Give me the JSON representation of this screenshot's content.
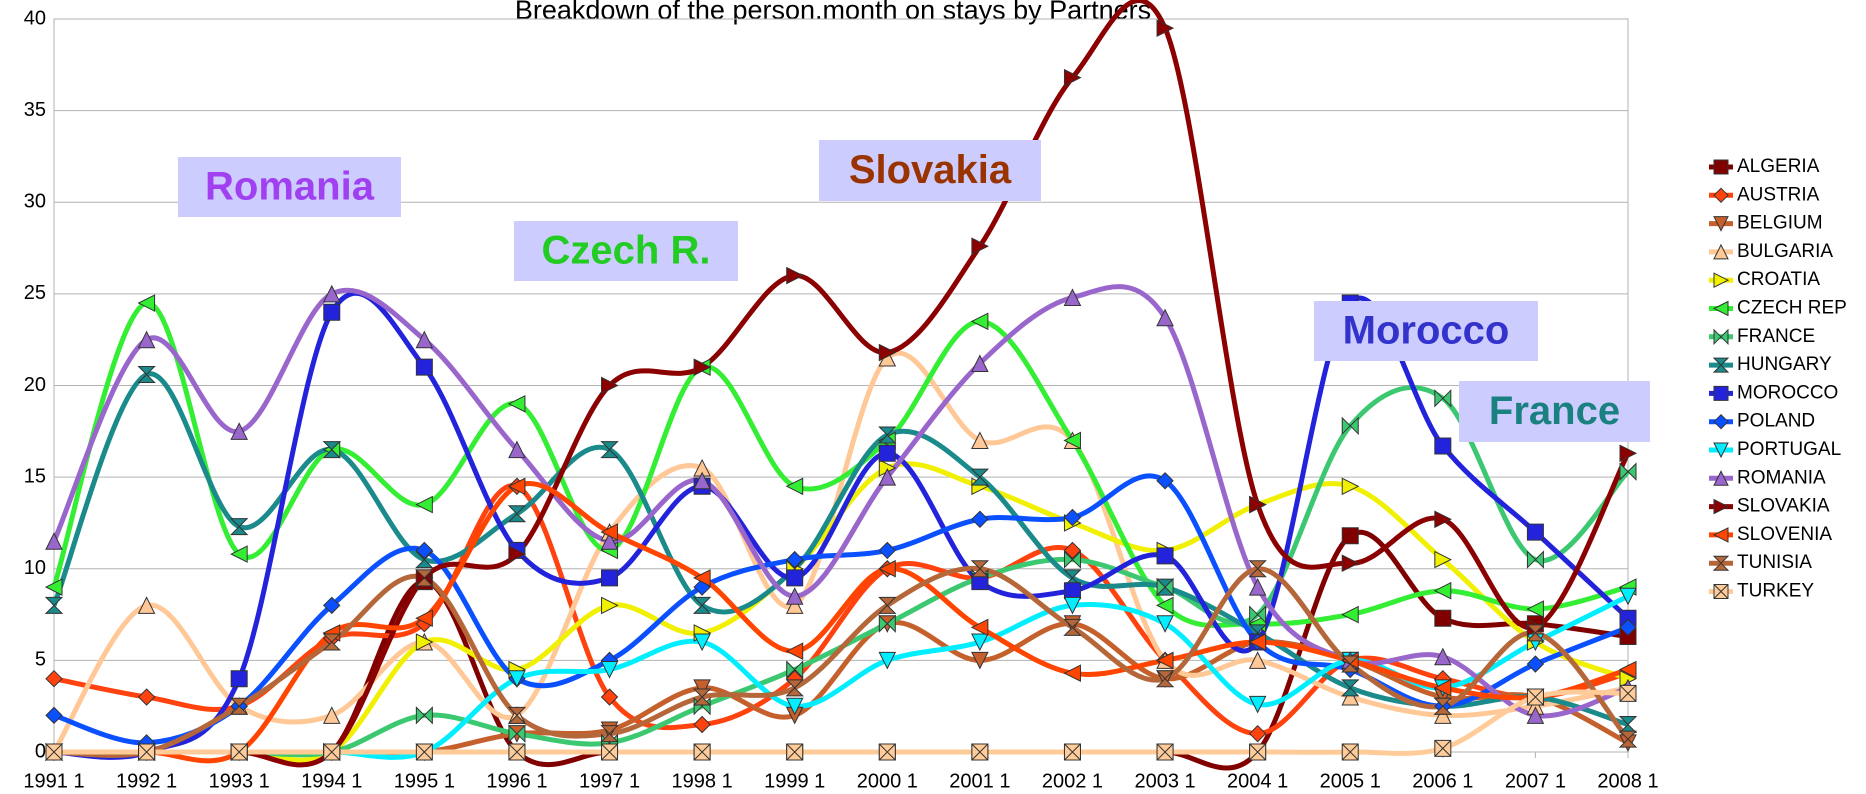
{
  "chart_data": {
    "type": "line",
    "title": "Breakdown of the person.month on stays by Partners",
    "categories": [
      "1991 1",
      "1992 1",
      "1993 1",
      "1994 1",
      "1995 1",
      "1996 1",
      "1997 1",
      "1998 1",
      "1999 1",
      "2000 1",
      "2001 1",
      "2002 1",
      "2003 1",
      "2004 1",
      "2005 1",
      "2006 1",
      "2007 1",
      "2008 1"
    ],
    "ylim": [
      0,
      40
    ],
    "yticks": [
      0,
      5,
      10,
      15,
      20,
      25,
      30,
      35,
      40
    ],
    "grid": true,
    "legend": "right",
    "annotations": [
      {
        "text": "Romania",
        "color": "#a040f0"
      },
      {
        "text": "Czech R.",
        "color": "#22cc22"
      },
      {
        "text": "Slovakia",
        "color": "#993300"
      },
      {
        "text": "Morocco",
        "color": "#3333cc"
      },
      {
        "text": "France",
        "color": "#1a8080"
      }
    ],
    "series": [
      {
        "name": "ALGERIA",
        "color": "#800000",
        "values": [
          0,
          0,
          0,
          0,
          9.3,
          0,
          0,
          0,
          0,
          0,
          0,
          0,
          0,
          0,
          11.8,
          7.3,
          7,
          6.3
        ]
      },
      {
        "name": "AUSTRIA",
        "color": "#ff420e",
        "values": [
          4,
          3,
          2.5,
          6.2,
          7,
          14.5,
          3,
          1.5,
          4,
          10,
          9.5,
          11,
          5,
          1,
          5,
          4,
          3,
          4.3
        ]
      },
      {
        "name": "BELGIUM",
        "color": "#c5602c",
        "values": [
          0,
          0,
          0,
          0,
          0,
          1,
          1.2,
          3.5,
          2,
          7,
          5,
          7,
          4,
          6,
          5,
          3,
          3,
          0.5
        ]
      },
      {
        "name": "BULGARIA",
        "color": "#ffc896",
        "values": [
          0,
          8,
          2.5,
          2,
          6,
          2,
          12,
          15.5,
          8,
          21.5,
          17,
          17,
          5,
          5,
          3,
          2,
          2.5,
          3.5
        ]
      },
      {
        "name": "CROATIA",
        "color": "#f0f000",
        "values": [
          0,
          0,
          0,
          0,
          6,
          4.5,
          8,
          6.5,
          10,
          15.5,
          14.5,
          12.5,
          11,
          13.5,
          14.5,
          10.5,
          6,
          4
        ]
      },
      {
        "name": "CZECH REP",
        "color": "#33ee33",
        "values": [
          9,
          24.5,
          10.8,
          16.5,
          13.5,
          19,
          11,
          21,
          14.5,
          17,
          23.5,
          17,
          8,
          7,
          7.5,
          8.8,
          7.8,
          9
        ]
      },
      {
        "name": "FRANCE",
        "color": "#3cc870",
        "values": [
          0,
          0,
          0,
          0,
          2,
          1,
          0.5,
          2.5,
          4.5,
          7,
          9.5,
          10.5,
          9,
          7.5,
          17.8,
          19.3,
          10.5,
          15.3
        ]
      },
      {
        "name": "HUNGARY",
        "color": "#1a8a8a",
        "values": [
          8,
          20.6,
          12.3,
          16.5,
          10.5,
          13,
          16.5,
          8,
          10,
          17.3,
          15,
          9.5,
          9,
          6.5,
          3.5,
          2.5,
          3,
          1.5
        ]
      },
      {
        "name": "MOROCCO",
        "color": "#2323dc",
        "values": [
          0,
          0,
          4,
          24,
          21,
          11,
          9.5,
          14.5,
          9.5,
          16.3,
          9.3,
          8.8,
          10.7,
          6,
          24.5,
          16.7,
          12,
          7.3
        ]
      },
      {
        "name": "POLAND",
        "color": "#0a50ff",
        "values": [
          2,
          0.5,
          2.5,
          8,
          11,
          4,
          5,
          9,
          10.5,
          11,
          12.7,
          12.8,
          14.8,
          6,
          4.5,
          2.5,
          4.8,
          6.8
        ]
      },
      {
        "name": "PORTUGAL",
        "color": "#00eeff",
        "values": [
          0,
          0,
          0,
          0,
          0,
          4,
          4.5,
          6,
          2.5,
          5,
          6,
          8,
          7,
          2.6,
          5,
          3.5,
          6,
          8.5
        ]
      },
      {
        "name": "ROMANIA",
        "color": "#9966cc",
        "values": [
          11.5,
          22.5,
          17.5,
          25,
          22.5,
          16.5,
          11.5,
          14.8,
          8.5,
          15,
          21.2,
          24.8,
          23.7,
          9,
          5,
          5.2,
          2,
          3.5
        ]
      },
      {
        "name": "SLOVAKIA",
        "color": "#8b0000",
        "values": [
          0,
          0,
          0,
          0,
          9.5,
          10.8,
          20,
          21,
          26,
          21.8,
          27.6,
          36.8,
          39.5,
          13.5,
          10.3,
          12.7,
          6.8,
          16.3
        ]
      },
      {
        "name": "SLOVENIA",
        "color": "#ff4500",
        "values": [
          0,
          0,
          0,
          6.5,
          7.3,
          14.5,
          12,
          9.5,
          5.5,
          10,
          6.8,
          4.3,
          5,
          6,
          5,
          3.5,
          3,
          4.5
        ]
      },
      {
        "name": "TUNISIA",
        "color": "#b5673a",
        "values": [
          0,
          0,
          2.5,
          6,
          9.5,
          2,
          1,
          3,
          3.5,
          8,
          10,
          6.8,
          4,
          10,
          4.8,
          2.5,
          6.5,
          0.7
        ]
      },
      {
        "name": "TURKEY",
        "color": "#ffcc99",
        "values": [
          0,
          0,
          0,
          0,
          0,
          0,
          0,
          0,
          0,
          0,
          0,
          0,
          0,
          0,
          0,
          0.2,
          3,
          3.2
        ]
      }
    ]
  }
}
